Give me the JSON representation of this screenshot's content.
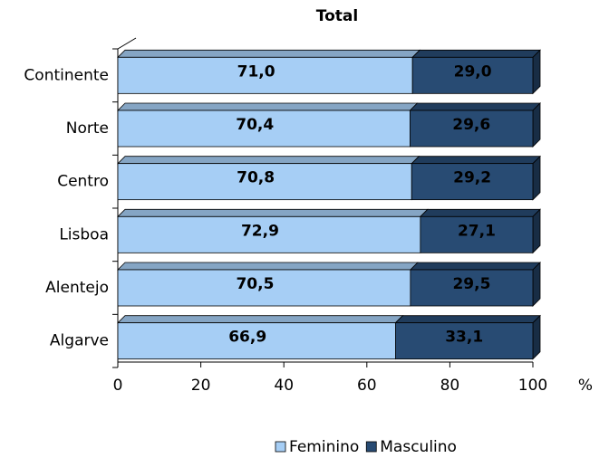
{
  "chart_data": {
    "type": "stacked_bar_horizontal",
    "title": "Total",
    "x_label": "%",
    "categories": [
      "Continente",
      "Norte",
      "Centro",
      "Lisboa",
      "Alentejo",
      "Algarve"
    ],
    "series": [
      {
        "name": "Feminino",
        "color": "#a6cef5",
        "values": [
          71.0,
          70.4,
          70.8,
          72.9,
          70.5,
          66.9
        ],
        "value_labels": [
          "71,0",
          "70,4",
          "70,8",
          "72,9",
          "70,5",
          "66,9"
        ]
      },
      {
        "name": "Masculino",
        "color": "#284b73",
        "values": [
          29.0,
          29.6,
          29.2,
          27.1,
          29.5,
          33.1
        ],
        "value_labels": [
          "29,0",
          "29,6",
          "29,2",
          "27,1",
          "29,5",
          "33,1"
        ]
      }
    ],
    "xlim": [
      0,
      100
    ],
    "xticks": [
      0,
      20,
      40,
      60,
      80,
      100
    ],
    "legend": "bottom"
  }
}
